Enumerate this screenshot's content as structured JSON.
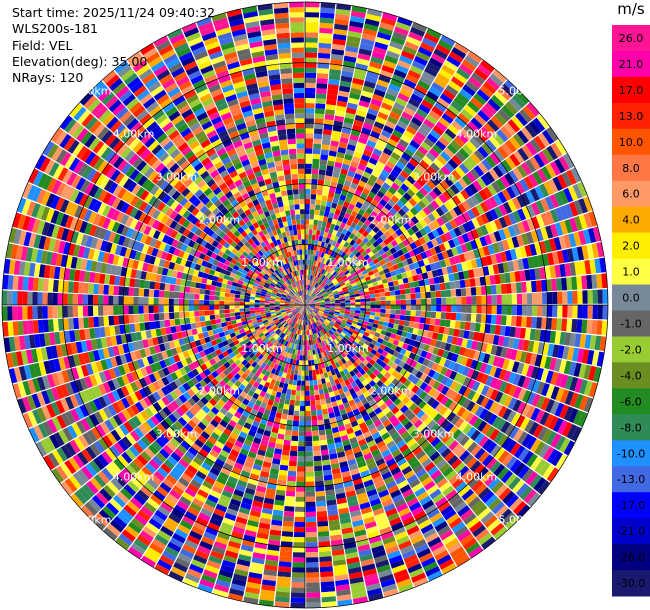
{
  "info": {
    "start_time": "Start time: 2025/11/24 09:40:32",
    "instrument": "WLS200s-181",
    "field": "Field: VEL",
    "elevation": "Elevation(deg): 35.00",
    "nrays": "NRays: 120"
  },
  "chart_data": {
    "type": "heatmap",
    "projection": "polar-ppi",
    "field": "VEL",
    "n_rays": 120,
    "range_rings_km": [
      1.0,
      2.0,
      3.0,
      4.0,
      5.0
    ],
    "ring_labels": [
      "1.00km",
      "2.00km",
      "3.00km",
      "4.00km",
      "5.00km"
    ],
    "colorbar": {
      "unit": "m/s",
      "ticks": [
        "26.0",
        "21.0",
        "17.0",
        "13.0",
        "10.0",
        "8.0",
        "6.0",
        "4.0",
        "2.0",
        "1.0",
        "0.0",
        "-1.0",
        "-2.0",
        "-4.0",
        "-6.0",
        "-8.0",
        "-10.0",
        "-13.0",
        "-17.0",
        "-21.0",
        "-26.0",
        "-30.0"
      ],
      "colors": [
        "#ff1493",
        "#ff00aa",
        "#ff0000",
        "#ff2200",
        "#ff5500",
        "#ff7744",
        "#ff9966",
        "#ffaa00",
        "#ffee00",
        "#ffff44",
        "#778899",
        "#666666",
        "#99cc33",
        "#6b8e23",
        "#228b22",
        "#2e8b57",
        "#1e90ff",
        "#4169e1",
        "#0000ff",
        "#0000cd",
        "#000080",
        "#191970"
      ]
    }
  }
}
